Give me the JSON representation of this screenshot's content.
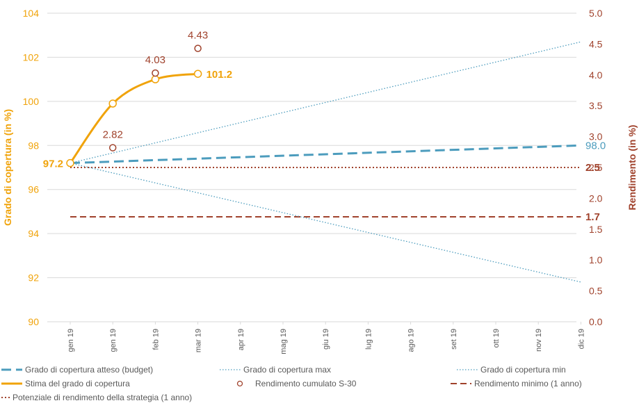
{
  "colors": {
    "orange": "#F0A30A",
    "red": "#A0422C",
    "blue": "#4C9CBD",
    "grid": "#D9D9D9",
    "axis_text": "#595959"
  },
  "chart_data": {
    "type": "line",
    "categories": [
      "gen 19",
      "gen 19",
      "feb 19",
      "mar 19",
      "apr 19",
      "mag 19",
      "giu 19",
      "lug 19",
      "ago 19",
      "set 19",
      "ott 19",
      "nov 19",
      "dic 19"
    ],
    "y_left": {
      "label": "Grado di copertura (in %)",
      "range": [
        90,
        104
      ],
      "ticks": [
        "90",
        "92",
        "94",
        "96",
        "98",
        "100",
        "102",
        "104"
      ]
    },
    "y_right": {
      "label": "Rendimento (in %)",
      "range": [
        0.0,
        5.0
      ],
      "ticks": [
        "0.0",
        "0.5",
        "1.0",
        "1.5",
        "2.0",
        "2.5",
        "3.0",
        "3.5",
        "4.0",
        "4.5",
        "5.0"
      ]
    },
    "grid": true,
    "series": [
      {
        "name": "Grado di copertura atteso (budget)",
        "axis": "left",
        "style": "dashed-thick",
        "color": "#4C9CBD",
        "points": [
          [
            0,
            97.2
          ],
          [
            12,
            98.0
          ]
        ],
        "end_label": "98.0"
      },
      {
        "name": "Grado di copertura max",
        "axis": "left",
        "style": "dotted",
        "color": "#4C9CBD",
        "points": [
          [
            0,
            97.2
          ],
          [
            12,
            102.7
          ]
        ]
      },
      {
        "name": "Grado di copertura min",
        "axis": "left",
        "style": "dotted",
        "color": "#4C9CBD",
        "points": [
          [
            0,
            97.2
          ],
          [
            12,
            91.8
          ]
        ]
      },
      {
        "name": "Stima del grado di copertura",
        "axis": "left",
        "style": "solid-smooth",
        "color": "#F0A30A",
        "points": [
          [
            0,
            97.2
          ],
          [
            1,
            99.9
          ],
          [
            2,
            101.0
          ],
          [
            3,
            101.25
          ]
        ],
        "start_label": "97.2",
        "end_label": "101.2"
      },
      {
        "name": "Rendimento cumulato S-30",
        "axis": "right",
        "style": "markers",
        "color": "#A0422C",
        "points": [
          [
            1,
            2.82
          ],
          [
            2,
            4.03
          ],
          [
            3,
            4.43
          ]
        ],
        "labels": [
          "2.82",
          "4.03",
          "4.43"
        ]
      },
      {
        "name": "Rendimento minimo (1 anno)",
        "axis": "right",
        "style": "dashed",
        "color": "#A0422C",
        "points": [
          [
            0,
            1.7
          ],
          [
            12,
            1.7
          ]
        ],
        "end_label": "1.7"
      },
      {
        "name": "Potenziale di rendimento della strategia (1 anno)",
        "axis": "right",
        "style": "dotted-red",
        "color": "#A0422C",
        "points": [
          [
            0,
            2.5
          ],
          [
            12,
            2.5
          ]
        ],
        "end_label": "2.5"
      }
    ],
    "legend_placement": "bottom"
  }
}
